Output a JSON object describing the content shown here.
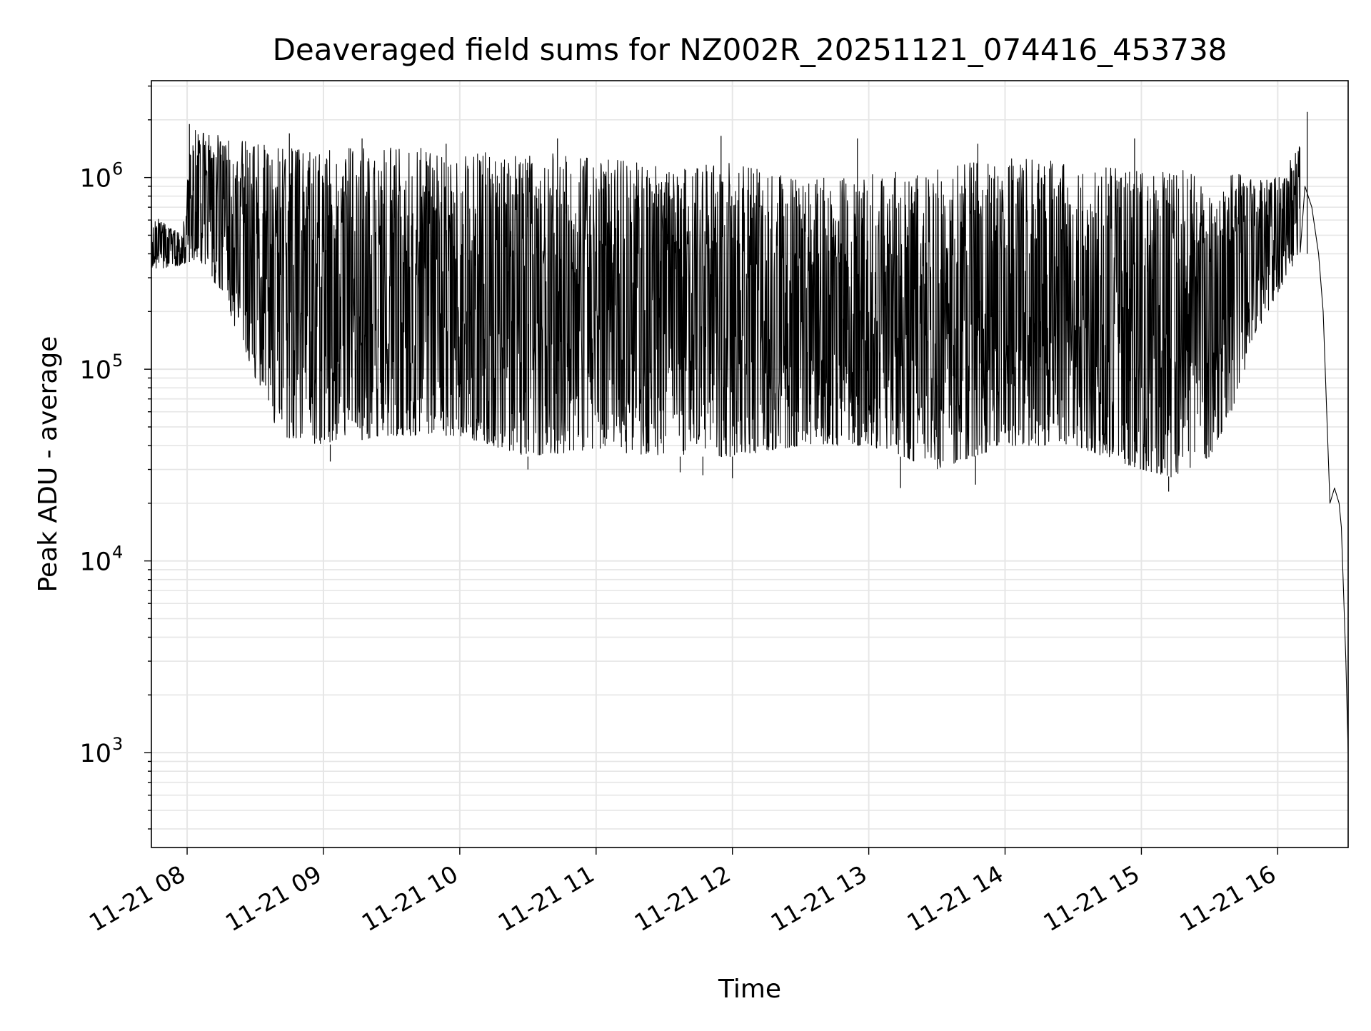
{
  "chart_data": {
    "type": "line",
    "title": "Deaveraged field sums for NZ002R_20251121_074416_453738",
    "xlabel": "Time",
    "ylabel": "Peak ADU - average",
    "yscale": "log",
    "ylim": [
      320,
      3200000
    ],
    "xlim": [
      "2025-11-21T07:44:16",
      "2025-11-21T16:31:00"
    ],
    "grid": true,
    "line_color": "#000000",
    "grid_color": "#e6e6e6",
    "xticks": [
      "11-21 08",
      "11-21 09",
      "11-21 10",
      "11-21 11",
      "11-21 12",
      "11-21 13",
      "11-21 14",
      "11-21 15",
      "11-21 16"
    ],
    "xtick_times": [
      "2025-11-21T08:00",
      "2025-11-21T09:00",
      "2025-11-21T10:00",
      "2025-11-21T11:00",
      "2025-11-21T12:00",
      "2025-11-21T13:00",
      "2025-11-21T14:00",
      "2025-11-21T15:00",
      "2025-11-21T16:00"
    ],
    "yticks": [
      {
        "base": "10",
        "exp": "3",
        "value": 1000
      },
      {
        "base": "10",
        "exp": "4",
        "value": 10000
      },
      {
        "base": "10",
        "exp": "5",
        "value": 100000
      },
      {
        "base": "10",
        "exp": "6",
        "value": 1000000
      }
    ],
    "series": [
      {
        "points": [
          [
            "2025-11-21T07:44:16",
            420000
          ],
          [
            "2025-11-21T07:47",
            700000
          ],
          [
            "2025-11-21T07:50",
            350000
          ],
          [
            "2025-11-21T07:55",
            450000
          ],
          [
            "2025-11-21T07:58",
            360000
          ],
          [
            "2025-11-21T08:00",
            1000000
          ],
          [
            "2025-11-21T08:02",
            1900000
          ],
          [
            "2025-11-21T08:05",
            900000
          ],
          [
            "2025-11-21T08:08",
            1950000
          ],
          [
            "2025-11-21T08:15",
            700000
          ],
          [
            "2025-11-21T08:22",
            1200000
          ],
          [
            "2025-11-21T08:30",
            900000
          ],
          [
            "2025-11-21T08:38",
            1600000
          ],
          [
            "2025-11-21T08:45",
            1100000
          ],
          [
            "2025-11-21T08:55",
            1300000
          ],
          [
            "2025-11-21T09:00",
            1400000
          ],
          [
            "2025-11-21T09:05",
            1000000
          ],
          [
            "2025-11-21T09:15",
            1400000
          ],
          [
            "2025-11-21T09:30",
            1300000
          ],
          [
            "2025-11-21T09:45",
            1500000
          ],
          [
            "2025-11-21T10:00",
            1350000
          ],
          [
            "2025-11-21T10:15",
            1300000
          ],
          [
            "2025-11-21T10:30",
            1250000
          ],
          [
            "2025-11-21T10:45",
            1200000
          ],
          [
            "2025-11-21T11:00",
            1100000
          ],
          [
            "2025-11-21T11:15",
            1050000
          ],
          [
            "2025-11-21T11:30",
            1000000
          ],
          [
            "2025-11-21T11:45",
            950000
          ],
          [
            "2025-11-21T12:00",
            900000
          ],
          [
            "2025-11-21T12:15",
            900000
          ],
          [
            "2025-11-21T12:30",
            850000
          ],
          [
            "2025-11-21T12:45",
            800000
          ],
          [
            "2025-11-21T13:00",
            750000
          ],
          [
            "2025-11-21T13:15",
            700000
          ],
          [
            "2025-11-21T13:30",
            700000
          ],
          [
            "2025-11-21T13:45",
            750000
          ],
          [
            "2025-11-21T14:00",
            900000
          ],
          [
            "2025-11-21T14:15",
            900000
          ],
          [
            "2025-11-21T14:30",
            800000
          ],
          [
            "2025-11-21T14:45",
            650000
          ],
          [
            "2025-11-21T15:00",
            550000
          ],
          [
            "2025-11-21T15:15",
            500000
          ],
          [
            "2025-11-21T15:30",
            450000
          ],
          [
            "2025-11-21T15:45",
            550000
          ],
          [
            "2025-11-21T15:55",
            450000
          ],
          [
            "2025-11-21T16:00",
            400000
          ],
          [
            "2025-11-21T16:05",
            550000
          ],
          [
            "2025-11-21T16:08",
            1000000
          ],
          [
            "2025-11-21T16:12",
            900000
          ],
          [
            "2025-11-21T16:15",
            700000
          ],
          [
            "2025-11-21T16:18",
            400000
          ],
          [
            "2025-11-21T16:20",
            200000
          ],
          [
            "2025-11-21T16:23",
            20000
          ],
          [
            "2025-11-21T16:25",
            24000
          ],
          [
            "2025-11-21T16:27",
            20000
          ],
          [
            "2025-11-21T16:28",
            15000
          ],
          [
            "2025-11-21T16:30",
            3000
          ],
          [
            "2025-11-21T16:31",
            1000
          ]
        ],
        "band_low": [
          [
            "2025-11-21T07:44:16",
            330000
          ],
          [
            "2025-11-21T07:58",
            350000
          ],
          [
            "2025-11-21T08:05",
            380000
          ],
          [
            "2025-11-21T08:15",
            250000
          ],
          [
            "2025-11-21T08:30",
            90000
          ],
          [
            "2025-11-21T08:40",
            45000
          ],
          [
            "2025-11-21T09:00",
            40000
          ],
          [
            "2025-11-21T09:30",
            45000
          ],
          [
            "2025-11-21T10:00",
            45000
          ],
          [
            "2025-11-21T10:30",
            35000
          ],
          [
            "2025-11-21T11:00",
            38000
          ],
          [
            "2025-11-21T11:30",
            35000
          ],
          [
            "2025-11-21T12:00",
            35000
          ],
          [
            "2025-11-21T12:30",
            40000
          ],
          [
            "2025-11-21T13:00",
            40000
          ],
          [
            "2025-11-21T13:30",
            30000
          ],
          [
            "2025-11-21T14:00",
            40000
          ],
          [
            "2025-11-21T14:30",
            40000
          ],
          [
            "2025-11-21T15:00",
            30000
          ],
          [
            "2025-11-21T15:15",
            27000
          ],
          [
            "2025-11-21T15:30",
            35000
          ],
          [
            "2025-11-21T15:40",
            60000
          ],
          [
            "2025-11-21T15:50",
            150000
          ],
          [
            "2025-11-21T16:00",
            250000
          ],
          [
            "2025-11-21T16:10",
            400000
          ]
        ],
        "band_high": [
          [
            "2025-11-21T07:44:16",
            650000
          ],
          [
            "2025-11-21T07:58",
            500000
          ],
          [
            "2025-11-21T08:02",
            1800000
          ],
          [
            "2025-11-21T08:30",
            1500000
          ],
          [
            "2025-11-21T09:00",
            1400000
          ],
          [
            "2025-11-21T09:30",
            1450000
          ],
          [
            "2025-11-21T10:00",
            1400000
          ],
          [
            "2025-11-21T10:30",
            1350000
          ],
          [
            "2025-11-21T11:00",
            1300000
          ],
          [
            "2025-11-21T11:30",
            1200000
          ],
          [
            "2025-11-21T12:00",
            1200000
          ],
          [
            "2025-11-21T12:30",
            1000000
          ],
          [
            "2025-11-21T13:00",
            1050000
          ],
          [
            "2025-11-21T13:30",
            1100000
          ],
          [
            "2025-11-21T14:00",
            1300000
          ],
          [
            "2025-11-21T14:30",
            1200000
          ],
          [
            "2025-11-21T15:00",
            1100000
          ],
          [
            "2025-11-21T15:30",
            1100000
          ],
          [
            "2025-11-21T16:00",
            1000000
          ],
          [
            "2025-11-21T16:10",
            1500000
          ]
        ],
        "spikes": [
          [
            "2025-11-21T08:01",
            1900000
          ],
          [
            "2025-11-21T08:45",
            1700000
          ],
          [
            "2025-11-21T09:17",
            1600000
          ],
          [
            "2025-11-21T09:54",
            1500000
          ],
          [
            "2025-11-21T10:43",
            1600000
          ],
          [
            "2025-11-21T11:55",
            1650000
          ],
          [
            "2025-11-21T12:55",
            1600000
          ],
          [
            "2025-11-21T13:48",
            1500000
          ],
          [
            "2025-11-21T14:57",
            1600000
          ],
          [
            "2025-11-21T16:13",
            2200000
          ]
        ],
        "dips": [
          [
            "2025-11-21T09:03",
            33000
          ],
          [
            "2025-11-21T10:30",
            30000
          ],
          [
            "2025-11-21T11:37",
            29000
          ],
          [
            "2025-11-21T11:47",
            28000
          ],
          [
            "2025-11-21T12:00",
            27000
          ],
          [
            "2025-11-21T13:14",
            24000
          ],
          [
            "2025-11-21T13:47",
            25000
          ],
          [
            "2025-11-21T15:12",
            23000
          ]
        ]
      }
    ]
  }
}
